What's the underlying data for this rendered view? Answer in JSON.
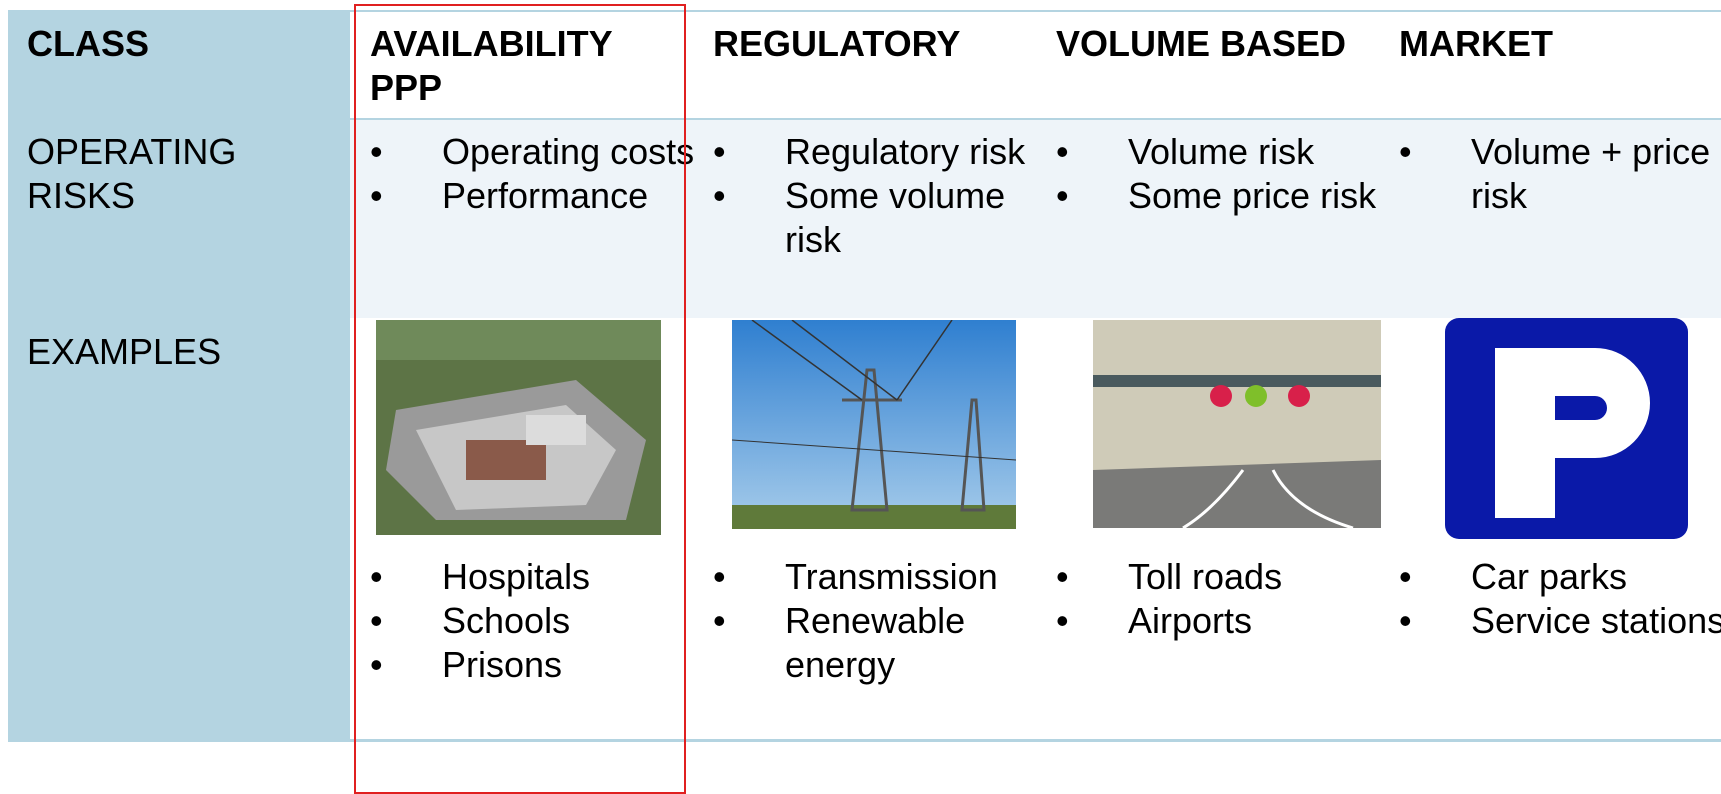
{
  "table": {
    "header": [
      "CLASS",
      "AVAILABILITY PPP",
      "REGULATORY",
      "VOLUME BASED",
      "MARKET"
    ],
    "rows": [
      {
        "label": "OPERATING RISKS",
        "cells": [
          [
            "Operating costs",
            "Performance"
          ],
          [
            "Regulatory risk",
            "Some volume risk"
          ],
          [
            "Volume risk",
            "Some price risk"
          ],
          [
            "Volume + price risk"
          ]
        ]
      },
      {
        "label": "EXAMPLES",
        "cells": [
          [
            "Hospitals",
            "Schools",
            "Prisons"
          ],
          [
            "Transmission",
            "Renewable energy"
          ],
          [
            "Toll roads",
            "Airports"
          ],
          [
            "Car parks",
            "Service stations"
          ]
        ]
      }
    ]
  }
}
